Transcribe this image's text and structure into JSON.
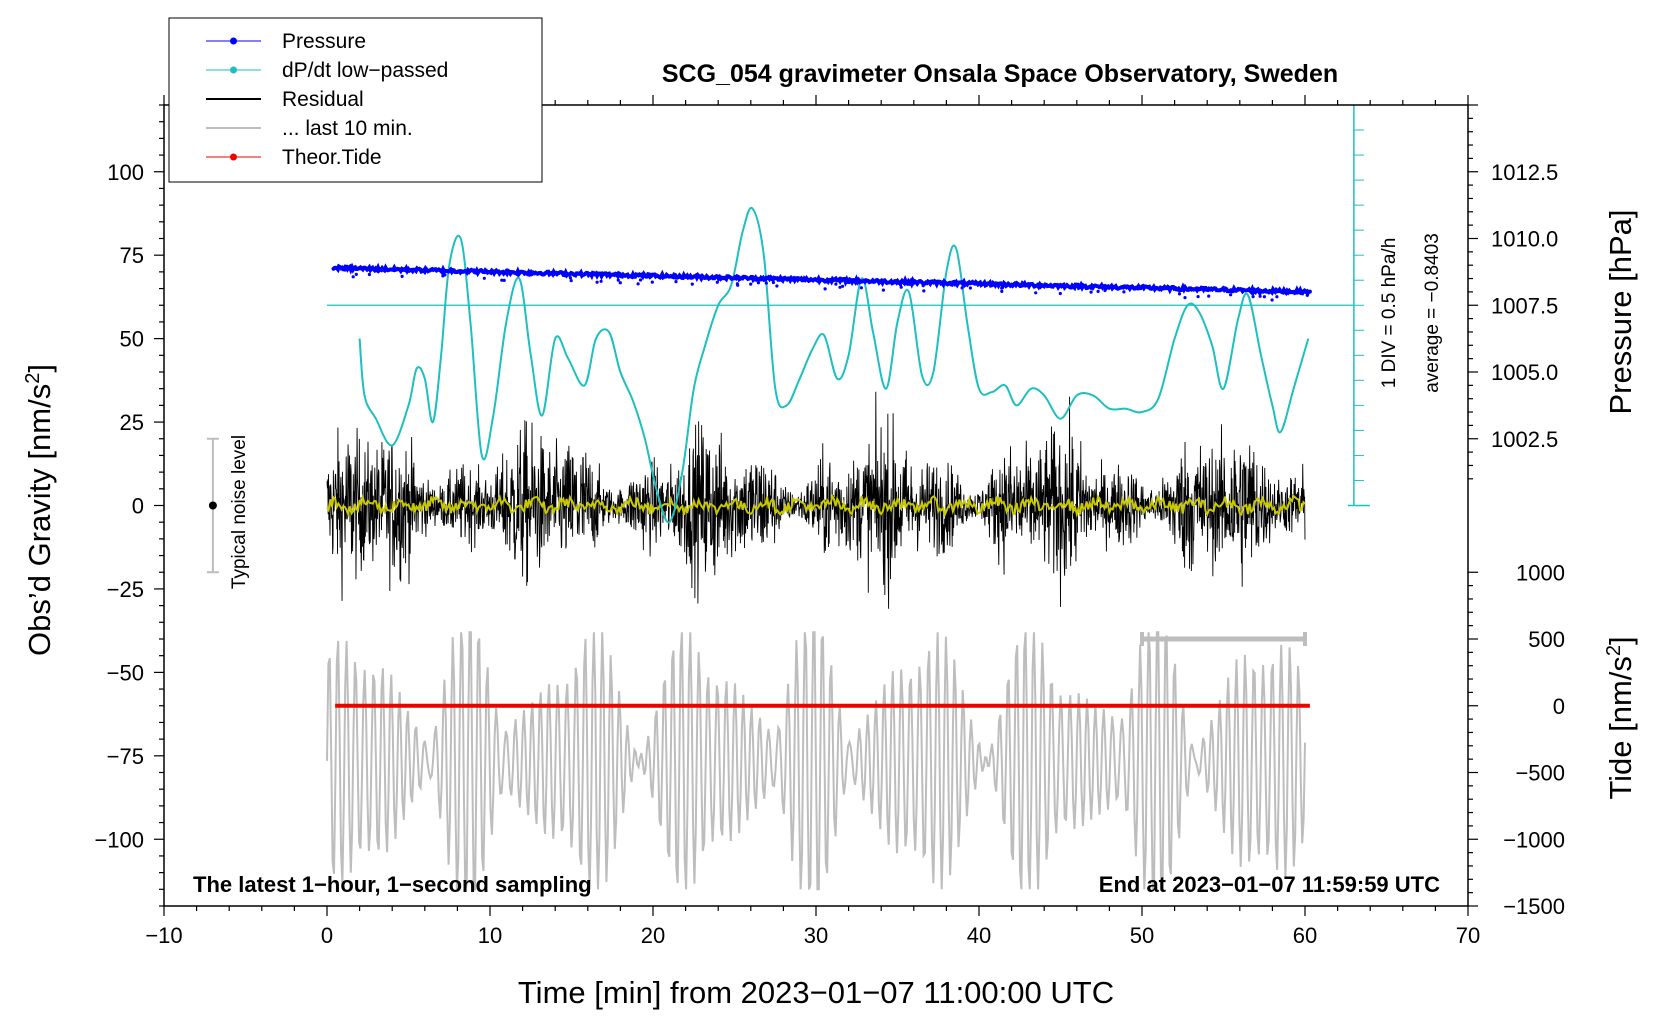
{
  "chart_data": {
    "type": "line",
    "title": "SCG_054 gravimeter Onsala Space Observatory, Sweden",
    "xlabel": "Time [min] from 2023−01−07 11:00:00 UTC",
    "ylabel_left": "Obs’d Gravity [nm/s",
    "ylabel_left_sup": "2",
    "ylabel_left_end": "]",
    "ylabel_pressure": "Pressure [hPa]",
    "ylabel_tide": "Tide [nm/s",
    "ylabel_tide_sup": "2",
    "ylabel_tide_end": "]",
    "xlim": [
      -10,
      70
    ],
    "ylim_gravity": [
      -120,
      120
    ],
    "pressure_range": [
      1000.0,
      1015.0
    ],
    "tide_range": [
      -1500,
      1500
    ],
    "x_ticks": [
      "−10",
      "0",
      "10",
      "20",
      "30",
      "40",
      "50",
      "60",
      "70"
    ],
    "x_tick_values": [
      -10,
      0,
      10,
      20,
      30,
      40,
      50,
      60,
      70
    ],
    "gravity_ticks": [
      "100",
      "75",
      "50",
      "25",
      "0",
      "−25",
      "−50",
      "−75",
      "−100"
    ],
    "gravity_tick_values": [
      100,
      75,
      50,
      25,
      0,
      -25,
      -50,
      -75,
      -100
    ],
    "pressure_ticks": [
      "1012.5",
      "1010.0",
      "1007.5",
      "1005.0",
      "1002.5"
    ],
    "pressure_tick_values": [
      1012.5,
      1010.0,
      1007.5,
      1005.0,
      1002.5
    ],
    "tide_ticks": [
      "1000",
      "500",
      "0",
      "−500",
      "−1000",
      "−1500"
    ],
    "tide_tick_values": [
      1000,
      500,
      0,
      -500,
      -1000,
      -1500
    ],
    "legend": [
      {
        "label": "Pressure",
        "color": "#0000ff",
        "style": "line-dot"
      },
      {
        "label": "dP/dt low−passed",
        "color": "#1fbfbf",
        "style": "line-dot"
      },
      {
        "label": "Residual",
        "color": "#000000",
        "style": "line"
      },
      {
        "label": "... last 10 min.",
        "color": "#bdbdbd",
        "style": "line"
      },
      {
        "label": "Theor.Tide",
        "color": "#ee0000",
        "style": "line-dot"
      }
    ],
    "series": [
      {
        "name": "Pressure",
        "color": "#0000ff",
        "units": "hPa",
        "start": 1008.9,
        "end": 1008.0,
        "x_range": [
          0.4,
          60.3
        ]
      },
      {
        "name": "dP/dt low-passed",
        "color": "#1fbfbf",
        "units": "hPa/h",
        "x": [
          2.0,
          2.3,
          3.0,
          4.0,
          5.0,
          5.5,
          6.0,
          6.5,
          7.0,
          7.5,
          8.2,
          8.8,
          9.5,
          10.2,
          11.0,
          11.8,
          12.5,
          13.2,
          14.0,
          14.8,
          15.8,
          16.5,
          17.3,
          18.0,
          18.8,
          19.5,
          20.2,
          21.0,
          21.8,
          22.5,
          23.2,
          24.0,
          24.8,
          25.5,
          26.1,
          26.8,
          27.5,
          28.2,
          29.0,
          29.8,
          30.5,
          31.3,
          32.0,
          32.8,
          33.5,
          34.3,
          35.0,
          35.7,
          36.5,
          37.2,
          38.0,
          38.6,
          39.3,
          40.0,
          40.8,
          41.6,
          42.3,
          43.2,
          44.0,
          45.0,
          46.0,
          47.0,
          48.0,
          49.0,
          50.0,
          51.0,
          52.0,
          52.8,
          53.5,
          54.3,
          55.0,
          55.9,
          56.5,
          57.3,
          58.0,
          58.5,
          59.3,
          60.2
        ],
        "y": [
          50.0,
          33.0,
          26.0,
          18.0,
          30.0,
          41.0,
          38.0,
          25.0,
          45.0,
          72.0,
          80.0,
          55.0,
          15.0,
          27.0,
          55.0,
          68.0,
          45.0,
          27.0,
          50.0,
          44.0,
          36.0,
          50.0,
          52.0,
          40.0,
          31.0,
          20.0,
          5.0,
          -5.0,
          10.0,
          35.0,
          48.0,
          60.0,
          66.0,
          82.0,
          89.0,
          75.0,
          35.0,
          30.0,
          38.0,
          47.0,
          51.0,
          38.0,
          45.0,
          68.0,
          52.0,
          35.0,
          55.0,
          64.0,
          39.0,
          40.0,
          70.0,
          77.0,
          54.0,
          35.0,
          34.0,
          36.0,
          30.0,
          35.0,
          33.0,
          26.0,
          33.0,
          33.0,
          29.0,
          29.0,
          28.0,
          32.0,
          50.0,
          60.0,
          58.0,
          48.0,
          35.0,
          56.0,
          63.0,
          45.0,
          30.0,
          22.0,
          35.0,
          50.0
        ],
        "reference_hPa_per_h": 0.0,
        "scale": "1 DIV = 0.5 hPa/h",
        "average": -0.8403
      },
      {
        "name": "Residual",
        "color": "#000000",
        "units": "nm/s^2",
        "x_range": [
          0.0,
          60.0
        ],
        "noise_amplitude": 25,
        "typical_min": -45,
        "typical_max": 55
      },
      {
        "name": "Residual smoothed",
        "color": "#c8c800",
        "units": "nm/s^2",
        "x_range": [
          0.0,
          60.0
        ],
        "level": 0
      },
      {
        "name": "... last 10 min.",
        "color": "#bdbdbd",
        "units": "nm/s^2",
        "x_range": [
          0.0,
          60.0
        ],
        "min": -115,
        "max": -38
      },
      {
        "name": "Theor.Tide",
        "color": "#ee0000",
        "units": "nm/s^2",
        "x_range": [
          0.5,
          60.3
        ],
        "value": 0
      }
    ],
    "annotations": {
      "noise_label": "Typical noise level",
      "noise_range": [
        -20,
        20
      ],
      "noise_x": -7,
      "bottom_left": "The latest 1−hour, 1−second sampling",
      "bottom_right": "End at 2023−01−07 11:59:59 UTC",
      "scale_label": "1 DIV = 0.5 hPa/h",
      "average_label": "average = −0.8403",
      "last_10_min_x": [
        50,
        60
      ],
      "tide_bar_value": 500
    }
  }
}
